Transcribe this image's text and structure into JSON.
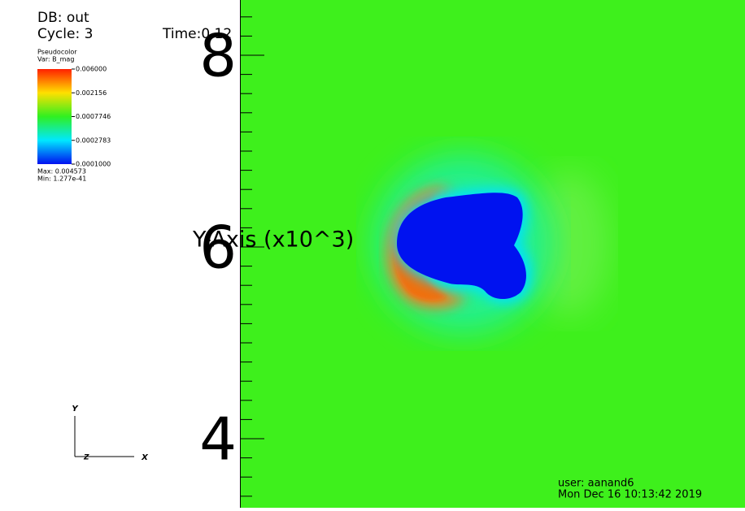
{
  "header": {
    "db": "DB: out",
    "cycle": "Cycle: 3",
    "time": "Time:0.12"
  },
  "legend": {
    "plot": "Pseudocolor",
    "var": "Var: B_mag",
    "labels": [
      "0.006000",
      "0.002156",
      "0.0007746",
      "0.0002783",
      "0.0001000"
    ],
    "max": "Max:  0.004573",
    "min": "Min:  1.277e-41"
  },
  "axis": {
    "title": "Y-Axis (x10^3)",
    "ticks": [
      "8",
      "6",
      "4"
    ]
  },
  "triad": {
    "y": "Y",
    "z": "Z",
    "x": "X"
  },
  "footer": {
    "user": "user: aanand6",
    "date": "Mon Dec 16 10:13:42 2019"
  }
}
